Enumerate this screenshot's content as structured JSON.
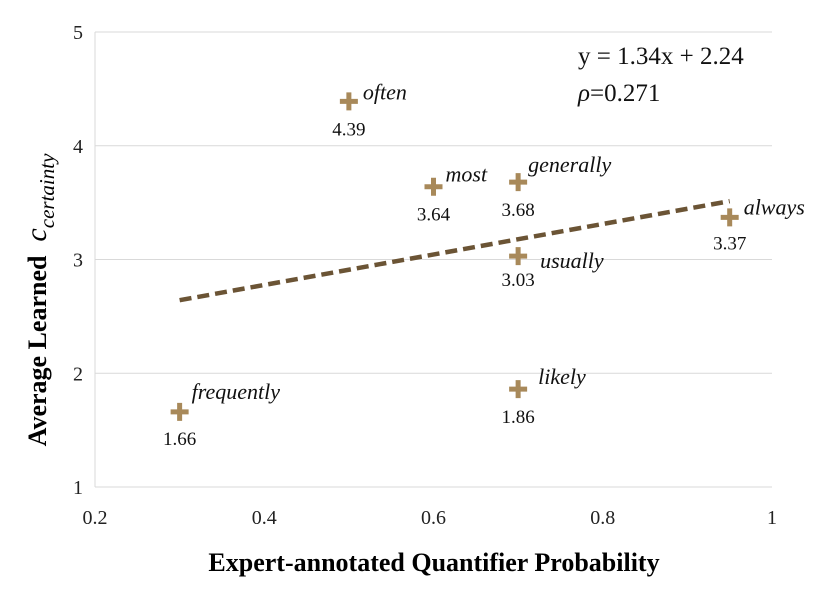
{
  "chart_data": {
    "type": "scatter",
    "title": "",
    "xlabel": "Expert-annotated Quantifier Probability",
    "ylabel": {
      "prefix": "Average Learned",
      "symbol": "c",
      "subscript": "certainty"
    },
    "xlim": [
      0.2,
      1
    ],
    "ylim": [
      1,
      5
    ],
    "x_ticks": [
      "0.2",
      "0.4",
      "0.6",
      "0.8",
      "1"
    ],
    "y_ticks": [
      "1",
      "2",
      "3",
      "4",
      "5"
    ],
    "grid": "horizontal",
    "marker_color": "#a8895a",
    "trendline_color": "#6b5435",
    "points": [
      {
        "name": "often",
        "x": 0.5,
        "y": 4.39,
        "value_label": "4.39"
      },
      {
        "name": "most",
        "x": 0.6,
        "y": 3.64,
        "value_label": "3.64"
      },
      {
        "name": "generally",
        "x": 0.7,
        "y": 3.68,
        "value_label": "3.68"
      },
      {
        "name": "always",
        "x": 0.95,
        "y": 3.37,
        "value_label": "3.37"
      },
      {
        "name": "usually",
        "x": 0.7,
        "y": 3.03,
        "value_label": "3.03"
      },
      {
        "name": "likely",
        "x": 0.7,
        "y": 1.86,
        "value_label": "1.86"
      },
      {
        "name": "frequently",
        "x": 0.3,
        "y": 1.66,
        "value_label": "1.66"
      }
    ],
    "trendline": {
      "slope": 1.34,
      "intercept": 2.24,
      "x_range": [
        0.3,
        0.95
      ],
      "style": "dashed"
    },
    "annotations": {
      "equation": "y = 1.34x + 2.24",
      "rho_symbol": "ρ",
      "rho_value": "=0.271"
    }
  }
}
